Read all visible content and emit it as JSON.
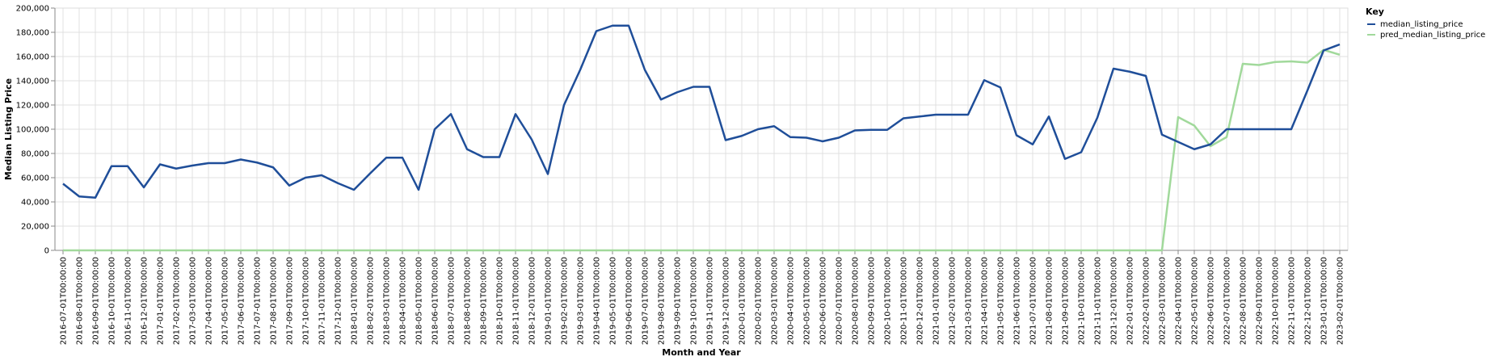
{
  "chart_data": {
    "type": "line",
    "xlabel": "Month and Year",
    "ylabel": "Median Listing Price",
    "ylim": [
      0,
      200000
    ],
    "y_ticks": [
      0,
      20000,
      40000,
      60000,
      80000,
      100000,
      120000,
      140000,
      160000,
      180000,
      200000
    ],
    "y_tick_labels": [
      "0",
      "20,000",
      "40,000",
      "60,000",
      "80,000",
      "100,000",
      "120,000",
      "140,000",
      "160,000",
      "180,000",
      "200,000"
    ],
    "grid": true,
    "legend_title": "Key",
    "legend_position": "top-right",
    "x": [
      "2016-07-01T00:00:00",
      "2016-08-01T00:00:00",
      "2016-09-01T00:00:00",
      "2016-10-01T00:00:00",
      "2016-11-01T00:00:00",
      "2016-12-01T00:00:00",
      "2017-01-01T00:00:00",
      "2017-02-01T00:00:00",
      "2017-03-01T00:00:00",
      "2017-04-01T00:00:00",
      "2017-05-01T00:00:00",
      "2017-06-01T00:00:00",
      "2017-07-01T00:00:00",
      "2017-08-01T00:00:00",
      "2017-09-01T00:00:00",
      "2017-10-01T00:00:00",
      "2017-11-01T00:00:00",
      "2017-12-01T00:00:00",
      "2018-01-01T00:00:00",
      "2018-02-01T00:00:00",
      "2018-03-01T00:00:00",
      "2018-04-01T00:00:00",
      "2018-05-01T00:00:00",
      "2018-06-01T00:00:00",
      "2018-07-01T00:00:00",
      "2018-08-01T00:00:00",
      "2018-09-01T00:00:00",
      "2018-10-01T00:00:00",
      "2018-11-01T00:00:00",
      "2018-12-01T00:00:00",
      "2019-01-01T00:00:00",
      "2019-02-01T00:00:00",
      "2019-03-01T00:00:00",
      "2019-04-01T00:00:00",
      "2019-05-01T00:00:00",
      "2019-06-01T00:00:00",
      "2019-07-01T00:00:00",
      "2019-08-01T00:00:00",
      "2019-09-01T00:00:00",
      "2019-10-01T00:00:00",
      "2019-11-01T00:00:00",
      "2019-12-01T00:00:00",
      "2020-01-01T00:00:00",
      "2020-02-01T00:00:00",
      "2020-03-01T00:00:00",
      "2020-04-01T00:00:00",
      "2020-05-01T00:00:00",
      "2020-06-01T00:00:00",
      "2020-07-01T00:00:00",
      "2020-08-01T00:00:00",
      "2020-09-01T00:00:00",
      "2020-10-01T00:00:00",
      "2020-11-01T00:00:00",
      "2020-12-01T00:00:00",
      "2021-01-01T00:00:00",
      "2021-02-01T00:00:00",
      "2021-03-01T00:00:00",
      "2021-04-01T00:00:00",
      "2021-05-01T00:00:00",
      "2021-06-01T00:00:00",
      "2021-07-01T00:00:00",
      "2021-08-01T00:00:00",
      "2021-09-01T00:00:00",
      "2021-10-01T00:00:00",
      "2021-11-01T00:00:00",
      "2021-12-01T00:00:00",
      "2022-01-01T00:00:00",
      "2022-02-01T00:00:00",
      "2022-03-01T00:00:00",
      "2022-04-01T00:00:00",
      "2022-05-01T00:00:00",
      "2022-06-01T00:00:00",
      "2022-07-01T00:00:00",
      "2022-08-01T00:00:00",
      "2022-09-01T00:00:00",
      "2022-10-01T00:00:00",
      "2022-11-01T00:00:00",
      "2022-12-01T00:00:00",
      "2023-01-01T00:00:00",
      "2023-02-01T00:00:00"
    ],
    "series": [
      {
        "name": "median_listing_price",
        "color": "#1f4e99",
        "values": [
          55000,
          44500,
          43500,
          69500,
          69500,
          52000,
          71000,
          67500,
          70000,
          72000,
          72000,
          75000,
          72500,
          68500,
          53500,
          60000,
          62000,
          55500,
          50000,
          63500,
          76500,
          76500,
          50000,
          100000,
          112500,
          83500,
          77000,
          77000,
          112500,
          91500,
          63000,
          120000,
          149000,
          181000,
          185500,
          185500,
          149000,
          124500,
          130500,
          135000,
          135000,
          91000,
          94500,
          100000,
          102500,
          93500,
          93000,
          90000,
          93000,
          99000,
          99500,
          99500,
          109000,
          110500,
          112000,
          112000,
          112000,
          140500,
          134500,
          95000,
          87500,
          110500,
          75500,
          81000,
          109500,
          150000,
          147500,
          144000,
          95500,
          89500,
          83500,
          87500,
          100000,
          100000,
          100000,
          100000,
          100000,
          132000,
          165000,
          170000
        ]
      },
      {
        "name": "pred_median_listing_price",
        "color": "#a1d99b",
        "values": [
          0,
          0,
          0,
          0,
          0,
          0,
          0,
          0,
          0,
          0,
          0,
          0,
          0,
          0,
          0,
          0,
          0,
          0,
          0,
          0,
          0,
          0,
          0,
          0,
          0,
          0,
          0,
          0,
          0,
          0,
          0,
          0,
          0,
          0,
          0,
          0,
          0,
          0,
          0,
          0,
          0,
          0,
          0,
          0,
          0,
          0,
          0,
          0,
          0,
          0,
          0,
          0,
          0,
          0,
          0,
          0,
          0,
          0,
          0,
          0,
          0,
          0,
          0,
          0,
          0,
          0,
          0,
          0,
          0,
          110000,
          103000,
          86000,
          93500,
          154000,
          153000,
          155500,
          156000,
          155000,
          165500,
          161500
        ]
      }
    ]
  }
}
